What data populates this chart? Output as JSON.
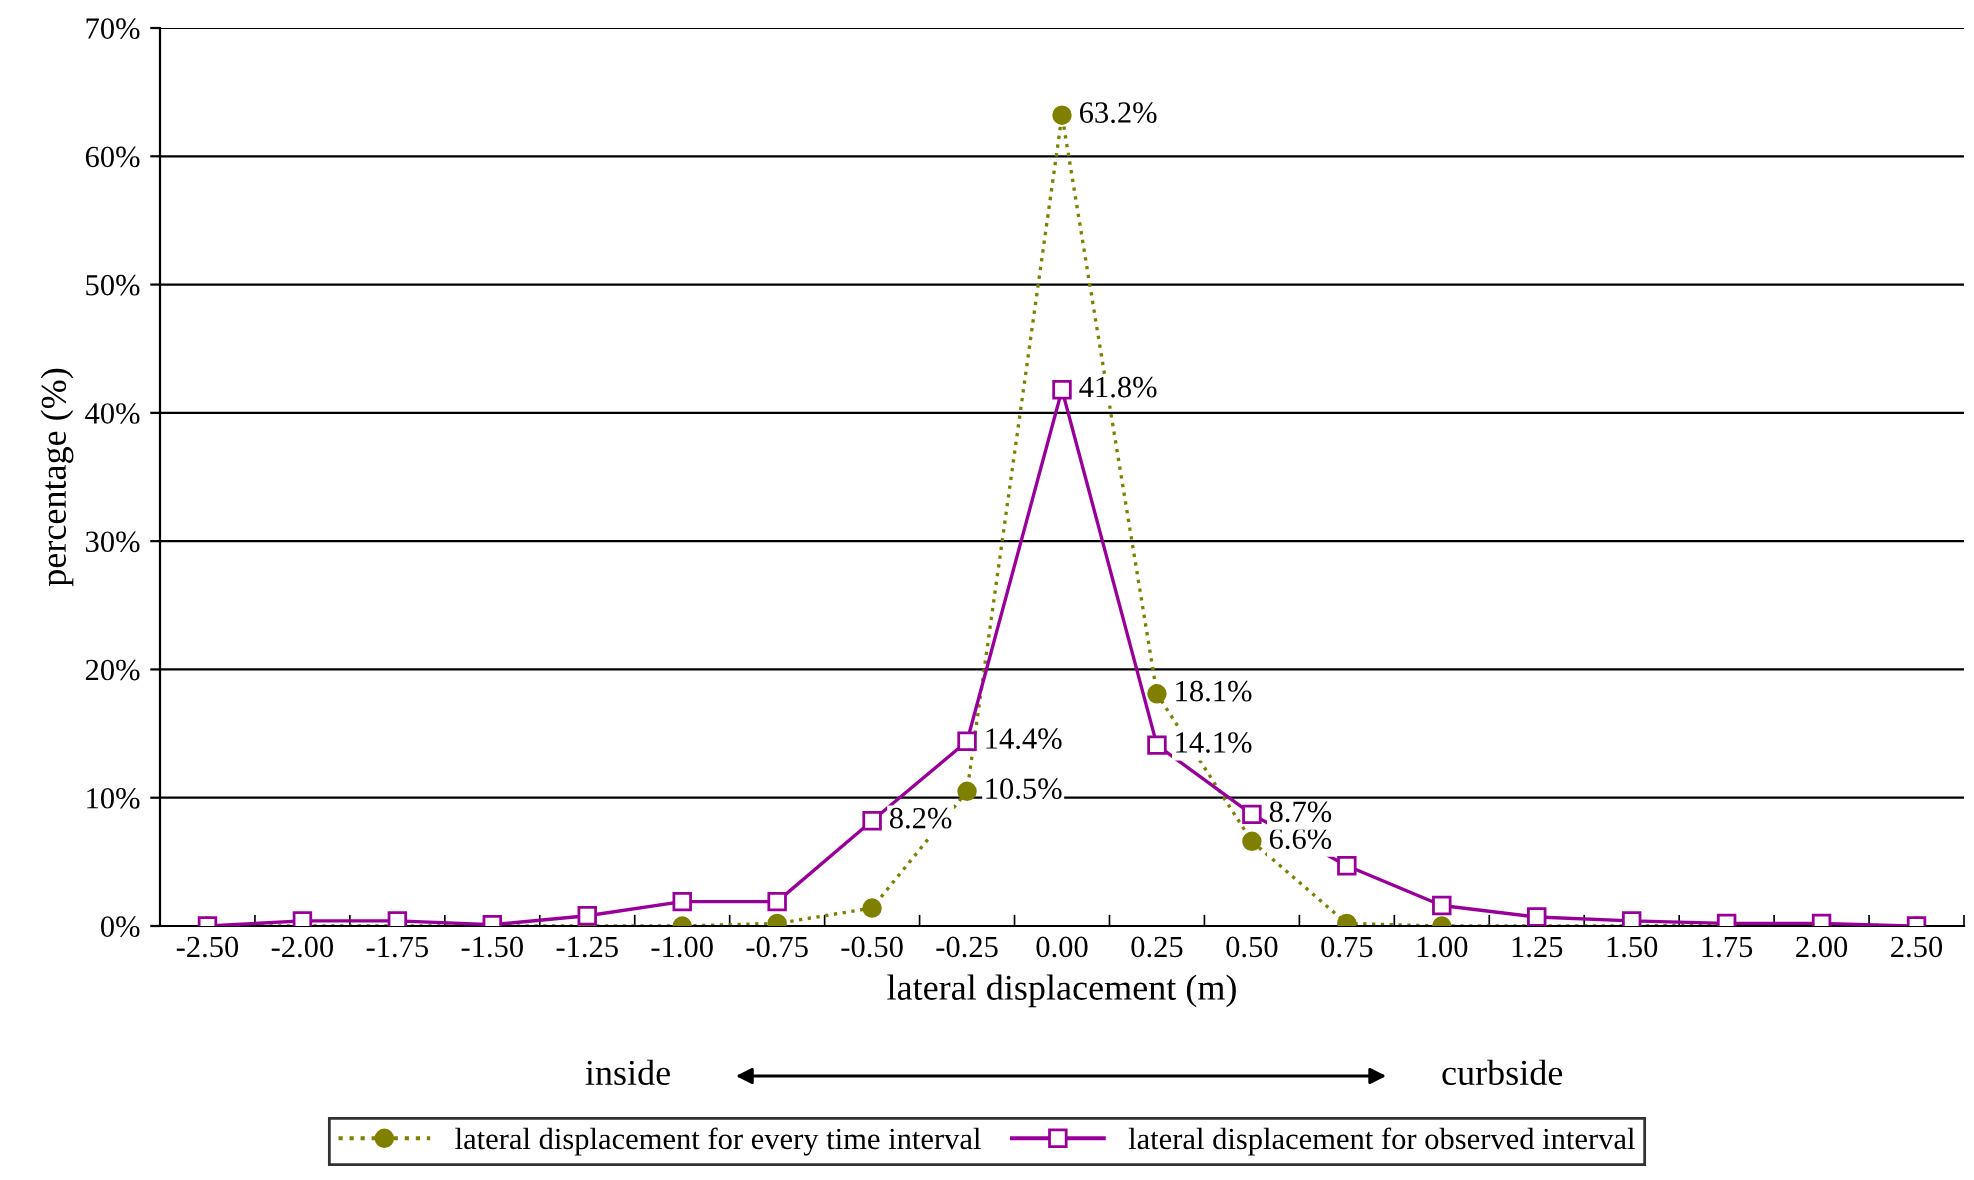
{
  "chart_data": {
    "type": "line",
    "xlabel": "lateral displacement (m)",
    "ylabel": "percentage (%)",
    "categories": [
      "-2.50",
      "-2.00",
      "-1.75",
      "-1.50",
      "-1.25",
      "-1.00",
      "-0.75",
      "-0.50",
      "-0.25",
      "0.00",
      "0.25",
      "0.50",
      "0.75",
      "1.00",
      "1.25",
      "1.50",
      "1.75",
      "2.00",
      "2.50"
    ],
    "series": [
      {
        "name": "lateral displacement for every time interval",
        "color": "#808000",
        "marker": "circle",
        "line_style": "dotted",
        "values": [
          0,
          0,
          0,
          0,
          0,
          0,
          0.2,
          1.4,
          10.5,
          63.2,
          18.1,
          6.6,
          0.2,
          0,
          0,
          0,
          0.1,
          0.1,
          0
        ],
        "value_labels": [
          null,
          null,
          null,
          null,
          null,
          null,
          null,
          null,
          "10.5%",
          "63.2%",
          "18.1%",
          "6.6%",
          null,
          null,
          null,
          null,
          null,
          null,
          null
        ]
      },
      {
        "name": "lateral displacement for observed interval",
        "color": "#990099",
        "marker": "square",
        "line_style": "solid",
        "values": [
          0,
          0.4,
          0.4,
          0.1,
          0.8,
          1.9,
          1.9,
          8.2,
          14.4,
          41.8,
          14.1,
          8.7,
          4.7,
          1.6,
          0.7,
          0.4,
          0.2,
          0.2,
          0
        ],
        "value_labels": [
          null,
          null,
          null,
          null,
          null,
          null,
          null,
          "8.2%",
          "14.4%",
          "41.8%",
          "14.1%",
          "8.7%",
          null,
          null,
          null,
          null,
          null,
          null,
          null
        ]
      }
    ],
    "ylim": [
      0,
      70
    ],
    "yticks": [
      {
        "value": 0,
        "label": "0%"
      },
      {
        "value": 10,
        "label": "10%"
      },
      {
        "value": 20,
        "label": "20%"
      },
      {
        "value": 30,
        "label": "30%"
      },
      {
        "value": 40,
        "label": "40%"
      },
      {
        "value": 50,
        "label": "50%"
      },
      {
        "value": 60,
        "label": "60%"
      },
      {
        "value": 70,
        "label": "70%"
      }
    ],
    "grid": "y",
    "legend": "bottom",
    "annotations": [
      "inside",
      "curbside"
    ]
  }
}
